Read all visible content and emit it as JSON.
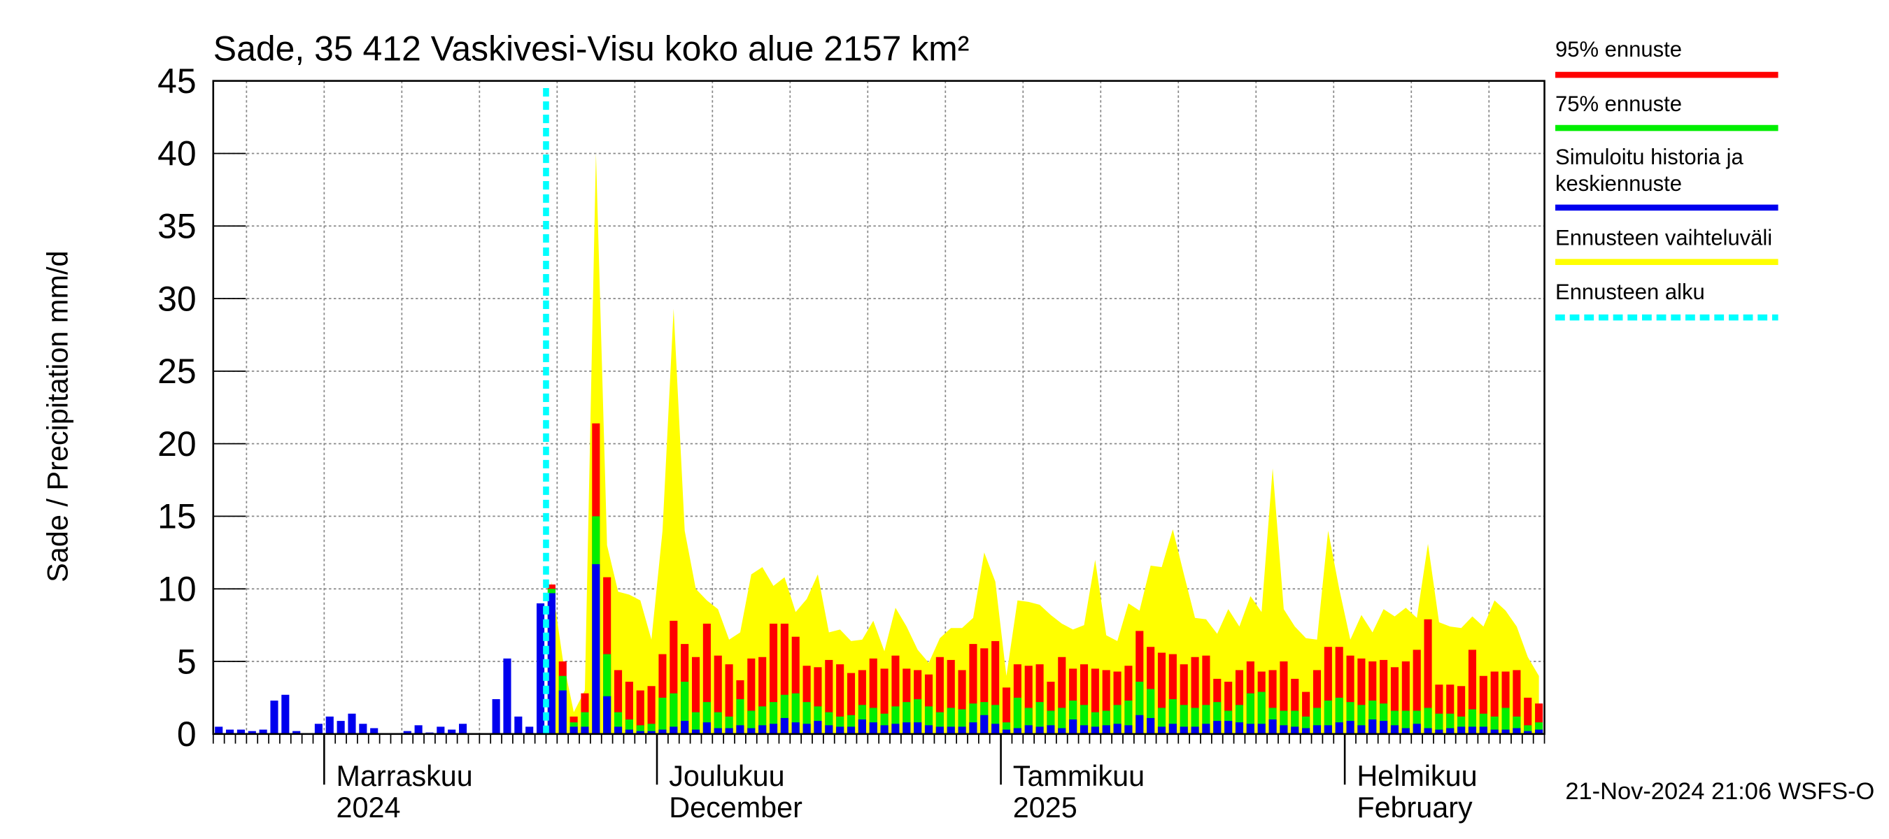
{
  "chart_data": {
    "type": "bar",
    "title": "Sade, 35 412 Vaskivesi-Visu koko alue 2157 km²",
    "y_label": "Sade / Precipitation   mm/d",
    "footer": "21-Nov-2024 21:06 WSFS-O",
    "xlim": [
      0,
      120
    ],
    "xticks": [
      {
        "value": 10,
        "label": "Marraskuu"
      },
      {
        "value": 40,
        "label": "Joulukuu"
      },
      {
        "value": 71,
        "label": "Tammikuu"
      },
      {
        "value": 102,
        "label": "Helmikuu"
      }
    ],
    "x_sublabels": [
      "2024",
      "December",
      "2025",
      "February"
    ],
    "xgrid": [
      3,
      10,
      17,
      24,
      31,
      38,
      45,
      52,
      59,
      66,
      73,
      80,
      87,
      94,
      101,
      108,
      115
    ],
    "ylim": [
      0,
      45
    ],
    "yticks": [
      0,
      5,
      10,
      15,
      20,
      25,
      30,
      35,
      40,
      45
    ],
    "grid": true,
    "x": [
      0,
      1,
      2,
      3,
      4,
      5,
      6,
      7,
      8,
      9,
      10,
      11,
      12,
      13,
      14,
      15,
      16,
      17,
      18,
      19,
      20,
      21,
      22,
      23,
      24,
      25,
      26,
      27,
      28,
      29,
      30,
      31,
      32,
      33,
      34,
      35,
      36,
      37,
      38,
      39,
      40,
      41,
      42,
      43,
      44,
      45,
      46,
      47,
      48,
      49,
      50,
      51,
      52,
      53,
      54,
      55,
      56,
      57,
      58,
      59,
      60,
      61,
      62,
      63,
      64,
      65,
      66,
      67,
      68,
      69,
      70,
      71,
      72,
      73,
      74,
      75,
      76,
      77,
      78,
      79,
      80,
      81,
      82,
      83,
      84,
      85,
      86,
      87,
      88,
      89,
      90,
      91,
      92,
      93,
      94,
      95,
      96,
      97,
      98,
      99,
      100,
      101,
      102,
      103,
      104,
      105,
      106,
      107,
      108,
      109,
      110,
      111,
      112,
      113,
      114,
      115,
      116,
      117,
      118,
      119
    ],
    "series": [
      {
        "name": "95% ennuste",
        "color": "#ff0000",
        "kind": "bar",
        "values": [
          null,
          null,
          null,
          null,
          null,
          null,
          null,
          null,
          null,
          null,
          null,
          null,
          null,
          null,
          null,
          null,
          null,
          null,
          null,
          null,
          null,
          null,
          null,
          null,
          null,
          null,
          null,
          null,
          null,
          null,
          10.3,
          5,
          1.2,
          2.8,
          21.4,
          10.8,
          4.4,
          3.6,
          3,
          3.3,
          5.5,
          7.8,
          6.2,
          5.3,
          7.6,
          5.4,
          4.8,
          3.7,
          5.2,
          5.3,
          7.6,
          7.6,
          6.7,
          4.7,
          4.6,
          5.1,
          4.8,
          4.2,
          4.4,
          5.2,
          4.5,
          5.4,
          4.5,
          4.4,
          4.1,
          5.3,
          5.1,
          4.4,
          6.2,
          5.9,
          6.4,
          3.2,
          4.8,
          4.7,
          4.8,
          3.6,
          5.3,
          4.5,
          4.8,
          4.5,
          4.4,
          4.3,
          4.7,
          7.1,
          6,
          5.6,
          5.5,
          4.8,
          5.3,
          5.4,
          3.8,
          3.6,
          4.4,
          5,
          4.3,
          4.4,
          5,
          3.8,
          2.9,
          4.4,
          6,
          6,
          5.4,
          5.2,
          5,
          5.1,
          4.6,
          5,
          5.8,
          7.9,
          3.4,
          3.4,
          3.3,
          5.8,
          4,
          4.3,
          4.3,
          4.4,
          2.5,
          2.1
        ]
      },
      {
        "name": "75% ennuste",
        "color": "#00ee00",
        "kind": "bar",
        "values": [
          null,
          null,
          null,
          null,
          null,
          null,
          null,
          null,
          null,
          null,
          null,
          null,
          null,
          null,
          null,
          null,
          null,
          null,
          null,
          null,
          null,
          null,
          null,
          null,
          null,
          null,
          null,
          null,
          null,
          null,
          10,
          4,
          0.8,
          1.5,
          15,
          5.5,
          1.5,
          1,
          0.6,
          0.7,
          2.5,
          2.8,
          3.6,
          1.5,
          2.2,
          1.5,
          1.2,
          2.4,
          1.6,
          1.9,
          2.2,
          2.7,
          2.8,
          2.2,
          1.9,
          1.5,
          1.2,
          1.3,
          2,
          1.8,
          1.4,
          1.9,
          2.2,
          2.4,
          1.9,
          1.5,
          1.8,
          1.7,
          2.1,
          2.2,
          2,
          0.8,
          2.5,
          1.8,
          2.2,
          1.6,
          1.8,
          2.3,
          2,
          1.5,
          1.6,
          2,
          2.3,
          3.6,
          3.1,
          1.8,
          2.4,
          2,
          1.8,
          2,
          2.2,
          1.6,
          2,
          2.8,
          2.9,
          1.8,
          1.6,
          1.6,
          1.2,
          1.8,
          2.3,
          2.5,
          2.2,
          2,
          2.3,
          2.1,
          1.6,
          1.6,
          1.6,
          1.8,
          1.4,
          1.4,
          1.2,
          1.7,
          1.4,
          1.2,
          1.8,
          1.2,
          0.6,
          0.8
        ]
      },
      {
        "name": "Simuloitu historia ja keskiennuste",
        "color": "#0000ee",
        "kind": "bar",
        "values": [
          0.5,
          0.3,
          0.3,
          0.2,
          0.3,
          2.3,
          2.7,
          0.2,
          0,
          0.7,
          1.2,
          0.9,
          1.4,
          0.7,
          0.4,
          0,
          0,
          0.2,
          0.6,
          0.1,
          0.5,
          0.3,
          0.7,
          0,
          0,
          2.4,
          5.2,
          1.2,
          0.5,
          9,
          9.7,
          3,
          0.5,
          0.5,
          11.7,
          2.6,
          0.5,
          0.3,
          0.2,
          0.2,
          0.3,
          0.5,
          0.9,
          0.3,
          0.8,
          0.4,
          0.4,
          0.6,
          0.4,
          0.6,
          0.7,
          1.1,
          0.8,
          0.7,
          0.9,
          0.6,
          0.5,
          0.5,
          1,
          0.8,
          0.6,
          0.7,
          0.8,
          0.8,
          0.6,
          0.5,
          0.5,
          0.5,
          0.8,
          1.3,
          0.7,
          0.3,
          0.4,
          0.6,
          0.5,
          0.6,
          0.4,
          1,
          0.6,
          0.5,
          0.6,
          0.7,
          0.6,
          1.3,
          1.1,
          0.5,
          0.7,
          0.5,
          0.5,
          0.7,
          0.9,
          0.9,
          0.8,
          0.7,
          0.7,
          1,
          0.6,
          0.5,
          0.4,
          0.6,
          0.6,
          0.8,
          0.9,
          0.6,
          1,
          0.9,
          0.6,
          0.4,
          0.7,
          0.4,
          0.3,
          0.4,
          0.5,
          0.5,
          0.5,
          0.3,
          0.3,
          0.4,
          0.2,
          0.3
        ]
      },
      {
        "name": "Ennusteen vaihteluväli",
        "color": "#ffff00",
        "kind": "area",
        "values": [
          null,
          null,
          null,
          null,
          null,
          null,
          null,
          null,
          null,
          null,
          null,
          null,
          null,
          null,
          null,
          null,
          null,
          null,
          null,
          null,
          null,
          null,
          null,
          null,
          null,
          null,
          null,
          null,
          null,
          null,
          10.5,
          5.2,
          1.5,
          3,
          40,
          13,
          9.8,
          9.6,
          9.2,
          6.5,
          14,
          29.3,
          14,
          10,
          9.2,
          8.6,
          6.5,
          7,
          11,
          11.5,
          10.2,
          10.8,
          8.4,
          9.3,
          11,
          7,
          7.2,
          6.4,
          6.5,
          7.8,
          5.7,
          8.7,
          7.4,
          5.8,
          4.9,
          6.6,
          7.3,
          7.3,
          8,
          12.5,
          10.5,
          4,
          9.2,
          9.1,
          8.9,
          8.2,
          7.6,
          7.2,
          7.5,
          12,
          6.8,
          6.4,
          9,
          8.5,
          11.6,
          11.5,
          14.1,
          11,
          8,
          7.9,
          6.9,
          8.6,
          7.4,
          9.5,
          8.4,
          18.3,
          8.6,
          7.4,
          6.6,
          6.5,
          14,
          10,
          6.5,
          8.2,
          7,
          8.6,
          8.1,
          8.7,
          8,
          13.1,
          7.7,
          7.4,
          7.3,
          8.1,
          7.4,
          9.2,
          8.5,
          7.4,
          5.3,
          4
        ]
      }
    ],
    "forecast_start": {
      "name": "Ennusteen alku",
      "x": 30,
      "color": "#00ffff"
    }
  }
}
